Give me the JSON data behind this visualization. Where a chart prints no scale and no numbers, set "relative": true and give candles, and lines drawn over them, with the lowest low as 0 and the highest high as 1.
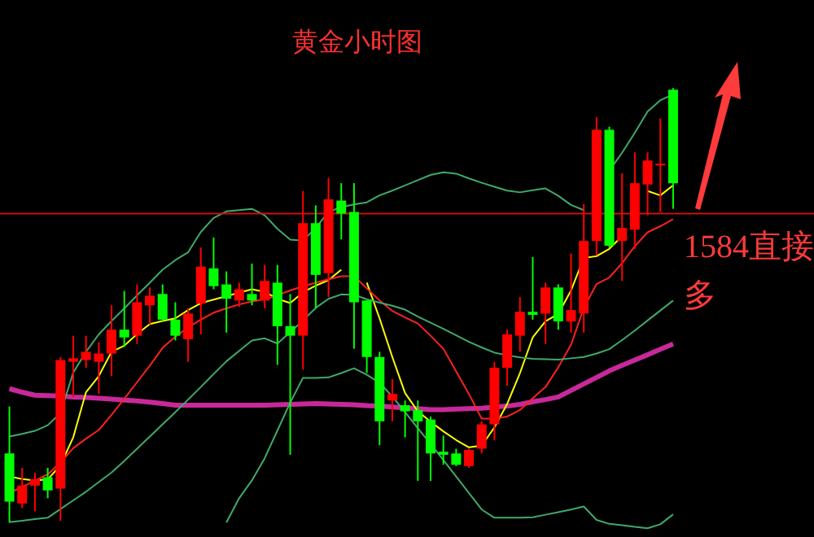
{
  "chart_data": {
    "type": "candlestick",
    "title": "黄金小时图",
    "relative": true,
    "categories": [
      null,
      null,
      null,
      null,
      null,
      null,
      null,
      null,
      null,
      null,
      null,
      null,
      null,
      null,
      null,
      null,
      null,
      null,
      null,
      null,
      null,
      null,
      null,
      null,
      null,
      null,
      null,
      null,
      null,
      null,
      null,
      null,
      null,
      null,
      null,
      null,
      null,
      null,
      null,
      null,
      null,
      null,
      null,
      null,
      null,
      null,
      null,
      null,
      null,
      null,
      null,
      null,
      null
    ],
    "ohlc": [
      [
        0.159,
        0.267,
        0,
        0.048
      ],
      [
        0.044,
        0.126,
        0.033,
        0.085
      ],
      [
        0.085,
        0.115,
        0.026,
        0.1
      ],
      [
        0.104,
        0.126,
        0.056,
        0.074
      ],
      [
        0.078,
        0.381,
        0.004,
        0.374
      ],
      [
        0.37,
        0.43,
        0.289,
        0.378
      ],
      [
        0.374,
        0.43,
        0.356,
        0.393
      ],
      [
        0.37,
        0.415,
        0.296,
        0.389
      ],
      [
        0.389,
        0.5,
        0.337,
        0.444
      ],
      [
        0.444,
        0.533,
        0.404,
        0.426
      ],
      [
        0.43,
        0.548,
        0.411,
        0.507
      ],
      [
        0.5,
        0.541,
        0.456,
        0.522
      ],
      [
        0.526,
        0.548,
        0.463,
        0.467
      ],
      [
        0.467,
        0.507,
        0.419,
        0.43
      ],
      [
        0.422,
        0.493,
        0.37,
        0.481
      ],
      [
        0.504,
        0.633,
        0.433,
        0.589
      ],
      [
        0.585,
        0.656,
        0.537,
        0.544
      ],
      [
        0.548,
        0.578,
        0.437,
        0.515
      ],
      [
        0.511,
        0.552,
        0.496,
        0.537
      ],
      [
        0.526,
        0.596,
        0.5,
        0.511
      ],
      [
        0.511,
        0.593,
        0.493,
        0.556
      ],
      [
        0.552,
        0.593,
        0.363,
        0.452
      ],
      [
        0.452,
        0.526,
        0.156,
        0.43
      ],
      [
        0.43,
        0.763,
        0.352,
        0.689
      ],
      [
        0.689,
        0.73,
        0.493,
        0.57
      ],
      [
        0.574,
        0.793,
        0.519,
        0.744
      ],
      [
        0.741,
        0.781,
        0.652,
        0.711
      ],
      [
        0.715,
        0.781,
        0.4,
        0.507
      ],
      [
        0.511,
        0.511,
        0.344,
        0.381
      ],
      [
        0.381,
        0.393,
        0.178,
        0.233
      ],
      [
        0.281,
        0.33,
        0.233,
        0.296
      ],
      [
        0.27,
        0.281,
        0.196,
        0.256
      ],
      [
        0.259,
        0.281,
        0.096,
        0.233
      ],
      [
        0.237,
        0.244,
        0.096,
        0.159
      ],
      [
        0.163,
        0.2,
        0.133,
        0.156
      ],
      [
        0.159,
        0.17,
        0.13,
        0.133
      ],
      [
        0.13,
        0.17,
        0.126,
        0.167
      ],
      [
        0.17,
        0.233,
        0.159,
        0.226
      ],
      [
        0.226,
        0.37,
        0.189,
        0.356
      ],
      [
        0.356,
        0.444,
        0.315,
        0.433
      ],
      [
        0.43,
        0.519,
        0.393,
        0.485
      ],
      [
        0.485,
        0.611,
        0.467,
        0.478
      ],
      [
        0.481,
        0.552,
        0.411,
        0.541
      ],
      [
        0.541,
        0.548,
        0.444,
        0.463
      ],
      [
        0.463,
        0.619,
        0.437,
        0.489
      ],
      [
        0.481,
        0.733,
        0.437,
        0.648
      ],
      [
        0.648,
        0.933,
        0.615,
        0.904
      ],
      [
        0.904,
        0.911,
        0.633,
        0.637
      ],
      [
        0.648,
        0.804,
        0.556,
        0.678
      ],
      [
        0.674,
        0.852,
        0.63,
        0.781
      ],
      [
        0.778,
        0.852,
        0.707,
        0.833
      ],
      [
        0.822,
        0.93,
        0.715,
        0.826
      ],
      [
        0.996,
        1,
        0.722,
        0.781
      ]
    ],
    "colors": [
      "#00ff00",
      "#ff0000",
      "#ff0000",
      "#00ff00",
      "#ff0000",
      "#ff0000",
      "#ff0000",
      "#ff0000",
      "#ff0000",
      "#00ff00",
      "#ff0000",
      "#ff0000",
      "#00ff00",
      "#00ff00",
      "#ff0000",
      "#ff0000",
      "#00ff00",
      "#00ff00",
      "#ff0000",
      "#00ff00",
      "#ff0000",
      "#00ff00",
      "#00ff00",
      "#ff0000",
      "#00ff00",
      "#ff0000",
      "#00ff00",
      "#00ff00",
      "#00ff00",
      "#00ff00",
      "#ff0000",
      "#00ff00",
      "#00ff00",
      "#00ff00",
      "#00ff00",
      "#00ff00",
      "#ff0000",
      "#ff0000",
      "#ff0000",
      "#ff0000",
      "#ff0000",
      "#00ff00",
      "#ff0000",
      "#00ff00",
      "#ff0000",
      "#ff0000",
      "#ff0000",
      "#00ff00",
      "#ff0000",
      "#ff0000",
      "#ff0000",
      "#ff0000",
      "#00ff00"
    ],
    "series": [
      {
        "type": "line",
        "color": "#c8299a",
        "values": [
          0.308,
          0.3,
          0.293,
          0.292,
          0.291,
          0.289,
          0.288,
          0.286,
          0.284,
          0.282,
          0.28,
          0.277,
          0.274,
          0.27,
          0.27,
          0.27,
          0.27,
          0.27,
          0.27,
          0.27,
          0.27,
          0.271,
          0.272,
          0.273,
          0.274,
          0.273,
          0.272,
          0.271,
          0.269,
          0.268,
          0.266,
          0.264,
          0.262,
          0.26,
          0.26,
          0.261,
          0.262,
          0.263,
          0.266,
          0.268,
          0.272,
          0.278,
          0.283,
          0.289,
          0.304,
          0.319,
          0.334,
          0.349,
          0.362,
          0.374,
          0.386,
          0.399,
          0.411
        ]
      },
      {
        "type": "line",
        "color": "#ffff00",
        "values": [
          0.106,
          0.1,
          0.097,
          0.099,
          0.132,
          0.196,
          0.3,
          0.337,
          0.393,
          0.407,
          0.434,
          0.457,
          0.464,
          0.47,
          0.489,
          0.505,
          0.513,
          0.521,
          0.529,
          0.537,
          0.531,
          0.515,
          0.505,
          0.53,
          0.545,
          0.558,
          0.582,
          null,
          0.552,
          0.47,
          0.381,
          0.298,
          0.256,
          0.232,
          0.21,
          0.19,
          0.173,
          0.177,
          0.219,
          0.273,
          0.344,
          0.426,
          0.463,
          0.48,
          0.534,
          0.609,
          0.613,
          0.63,
          0.659,
          null,
          0.763,
          0.753,
          0.776
        ]
      },
      {
        "type": "line",
        "color": "#ff2020",
        "values": [
          0.068,
          0.082,
          0.096,
          0.111,
          0.138,
          0.171,
          0.193,
          0.213,
          0.248,
          0.285,
          0.323,
          0.361,
          0.402,
          0.428,
          0.449,
          0.467,
          0.483,
          0.493,
          0.502,
          0.509,
          0.514,
          0.523,
          0.534,
          0.544,
          0.552,
          0.56,
          0.567,
          0.567,
          0.539,
          0.511,
          0.487,
          0.472,
          0.458,
          0.43,
          0.4,
          0.348,
          0.296,
          0.239,
          0.239,
          0.244,
          0.259,
          0.286,
          0.312,
          0.357,
          0.409,
          0.494,
          0.549,
          0.564,
          0.597,
          0.636,
          0.668,
          0.682,
          0.698
        ]
      },
      {
        "type": "line",
        "color": "#3faa6a",
        "values": [
          0.198,
          0.204,
          0.211,
          0.224,
          0.252,
          0.345,
          0.393,
          0.433,
          0.464,
          0.493,
          0.523,
          0.552,
          0.582,
          0.604,
          0.622,
          0.669,
          0.701,
          0.716,
          0.719,
          0.722,
          0.707,
          0.676,
          0.651,
          0.649,
          0.678,
          0.715,
          0.726,
          0.732,
          0.737,
          0.753,
          0.764,
          0.776,
          0.788,
          0.8,
          0.806,
          0.803,
          0.792,
          0.782,
          0.773,
          0.764,
          0.76,
          0.765,
          0.769,
          0.752,
          0.731,
          0.719,
          null,
          0.81,
          0.851,
          0.897,
          0.946,
          0.972,
          0.985
        ]
      },
      {
        "type": "line",
        "color": "#3faa6a",
        "values": [
          0.001,
          0.004,
          0.008,
          0.011,
          0.031,
          0.051,
          0.071,
          0.093,
          0.115,
          0.142,
          0.17,
          0.198,
          0.226,
          0.254,
          0.283,
          0.312,
          0.342,
          0.371,
          0.395,
          0.419,
          0.424,
          0.412,
          0.438,
          0.465,
          0.494,
          0.515,
          0.525,
          0.524,
          0.514,
          0.506,
          0.499,
          0.49,
          0.474,
          0.46,
          0.446,
          0.431,
          0.416,
          0.403,
          0.391,
          0.385,
          0.38,
          0.377,
          0.376,
          0.375,
          0.378,
          0.381,
          0.389,
          0.399,
          0.42,
          0.442,
          0.465,
          0.488,
          0.511
        ]
      },
      {
        "type": "line",
        "color": "#3faa6a",
        "values": [
          null,
          null,
          null,
          null,
          null,
          null,
          null,
          null,
          null,
          null,
          null,
          null,
          null,
          null,
          null,
          null,
          null,
          0,
          0.056,
          0.097,
          0.148,
          0.212,
          0.276,
          0.333,
          0.333,
          0.334,
          0.344,
          0.355,
          0.34,
          0.322,
          0.29,
          0.254,
          0.217,
          0.181,
          0.144,
          0.106,
          0.068,
          0.03,
          0.011,
          0.011,
          0.011,
          0.012,
          0.018,
          0.024,
          0.03,
          0.037,
          0.006,
          -0.003,
          -0.006,
          -0.01,
          -0.013,
          -0.004,
          0.019
        ]
      }
    ],
    "ref_lines": [
      {
        "axis": "y",
        "value": 0.711,
        "label": "1584直接多",
        "color": "#cc1010"
      }
    ]
  }
}
